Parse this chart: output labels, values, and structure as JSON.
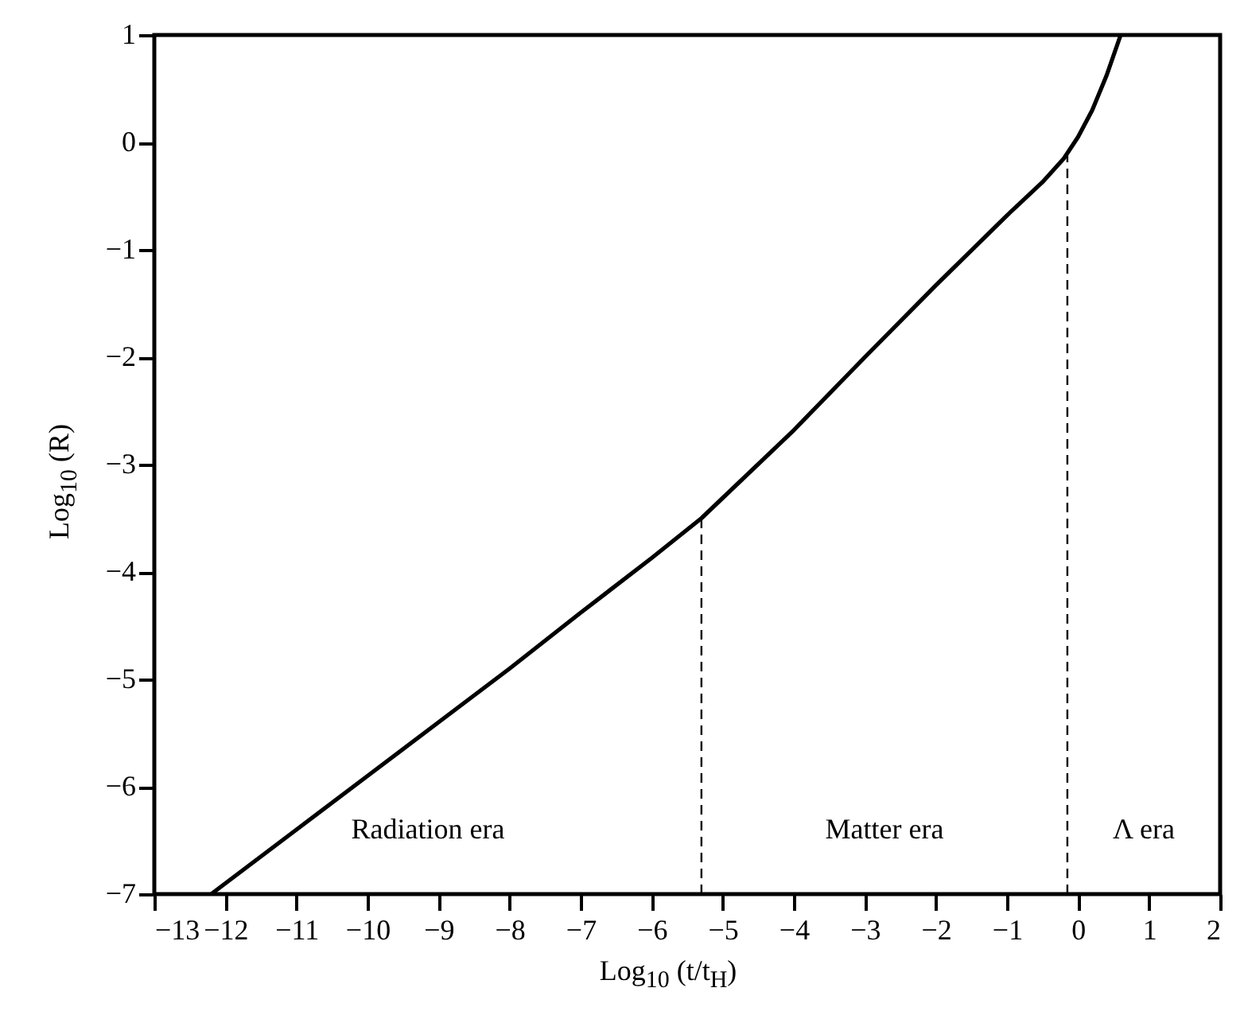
{
  "chart_data": {
    "type": "line",
    "xlabel": "Log$_{10}$ (t/t$_{H}$)",
    "ylabel": "Log$_{10}$ (R)",
    "xlim": [
      -13,
      2
    ],
    "xticks": [
      -13,
      -12,
      -11,
      -10,
      -9,
      -8,
      -7,
      -6,
      -5,
      -4,
      -3,
      -2,
      -1,
      0,
      1,
      2
    ],
    "ylim": [
      -7,
      1
    ],
    "yticks": [
      -7,
      -6,
      -5,
      -4,
      -3,
      -2,
      -1,
      0,
      1
    ],
    "grid": false,
    "series": [
      {
        "color": "#000000",
        "x": [
          -12.2,
          -11,
          -10,
          -9,
          -8,
          -7,
          -6,
          -5.3,
          -4,
          -3,
          -2,
          -1,
          -0.5,
          -0.2,
          0,
          0.2,
          0.4,
          0.6
        ],
        "values": [
          -7,
          -6.4,
          -5.9,
          -5.4,
          -4.9,
          -4.38,
          -3.87,
          -3.5,
          -2.68,
          -2.0,
          -1.33,
          -0.68,
          -0.37,
          -0.15,
          0.05,
          0.3,
          0.62,
          1
        ]
      },
      {
        "color": "#000000",
        "line_style": "dashed",
        "x": [
          -5.3,
          -5.3
        ],
        "values": [
          -7,
          -3.5
        ]
      },
      {
        "color": "#000000",
        "line_style": "dashed",
        "x": [
          -0.15,
          -0.15
        ],
        "values": [
          -7,
          -0.12
        ]
      }
    ],
    "annotations": [
      "Radiation era",
      "Matter era",
      "Λ era"
    ]
  }
}
